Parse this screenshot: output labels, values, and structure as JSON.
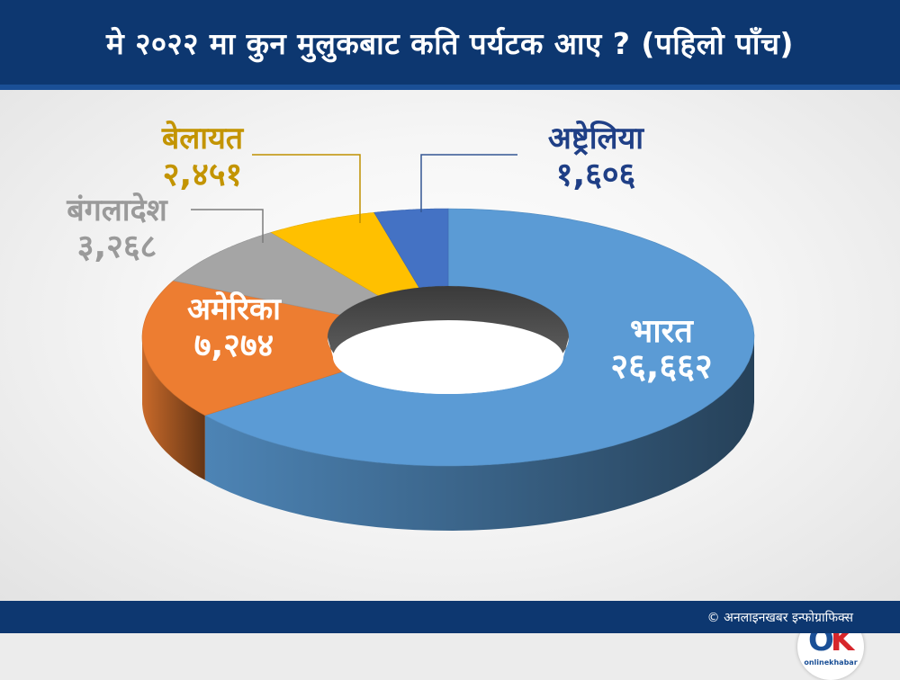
{
  "header": {
    "title": "मे २०२२ मा कुन मुलुकबाट कति पर्यटक आए ? (पहिलो पाँच)"
  },
  "footer": {
    "credit": "© अनलाइनखबर इन्फोग्राफिक्स"
  },
  "logo": {
    "mark_o": "O",
    "mark_k": "K",
    "text": "onlinekhabar"
  },
  "colors": {
    "header_bg": "#0d3770",
    "india": "#5b9bd5",
    "america": "#ed7d31",
    "bangladesh": "#a5a5a5",
    "uk": "#ffc000",
    "australia": "#4472c4"
  },
  "chart_data": {
    "type": "pie",
    "donut": true,
    "title": "मे २०२२ मा कुन मुलुकबाट कति पर्यटक आए ? (पहिलो पाँच)",
    "slices": [
      {
        "label": "भारत",
        "value_text": "२६,६६२",
        "value": 26662,
        "color": "#5b9bd5"
      },
      {
        "label": "अमेरिका",
        "value_text": "७,२७४",
        "value": 7274,
        "color": "#ed7d31"
      },
      {
        "label": "बंगलादेश",
        "value_text": "३,२६८",
        "value": 3268,
        "color": "#a5a5a5"
      },
      {
        "label": "बेलायत",
        "value_text": "२,४५१",
        "value": 2451,
        "color": "#ffc000"
      },
      {
        "label": "अष्ट्रेलिया",
        "value_text": "१,६०६",
        "value": 1606,
        "color": "#4472c4"
      }
    ]
  }
}
